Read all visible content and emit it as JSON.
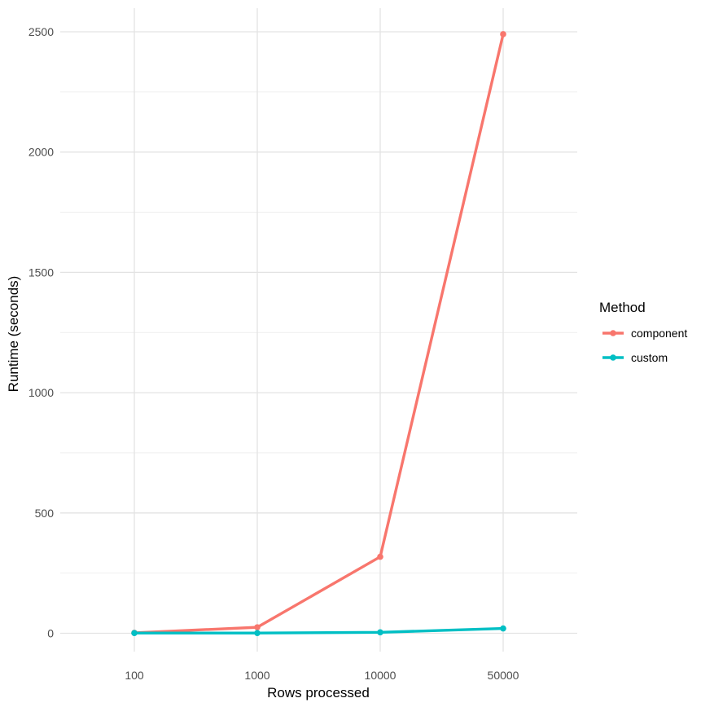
{
  "chart_data": {
    "type": "line",
    "categories": [
      "100",
      "1000",
      "10000",
      "50000"
    ],
    "xlabel": "Rows processed",
    "ylabel": "Runtime (seconds)",
    "ylim": [
      0,
      2500
    ],
    "yticks": [
      "0",
      "500",
      "1000",
      "1500",
      "2000",
      "2500"
    ],
    "grid": true,
    "legend": {
      "title": "Method",
      "placement": "right"
    },
    "series": [
      {
        "name": "component",
        "color": "#F8766D",
        "values": [
          2,
          25,
          318,
          2490
        ]
      },
      {
        "name": "custom",
        "color": "#00BFC4",
        "values": [
          1,
          1,
          4,
          20
        ]
      }
    ]
  }
}
